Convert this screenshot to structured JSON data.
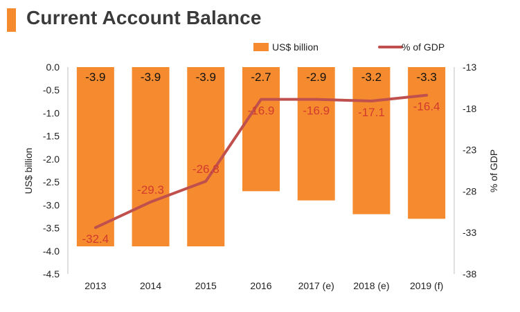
{
  "title": "Current Account Balance",
  "chart_data": {
    "type": "bar",
    "categories": [
      "2013",
      "2014",
      "2015",
      "2016",
      "2017 (e)",
      "2018 (e)",
      "2019 (f)"
    ],
    "series": [
      {
        "name": "US$ billion",
        "type": "bar",
        "axis": "left",
        "values": [
          -3.9,
          -3.9,
          -3.9,
          -2.7,
          -2.9,
          -3.2,
          -3.3
        ]
      },
      {
        "name": "% of GDP",
        "type": "line",
        "axis": "right",
        "values": [
          -32.4,
          -29.3,
          -26.8,
          -16.9,
          -16.9,
          -17.1,
          -16.4
        ]
      }
    ],
    "ylabel": "US$ billion",
    "y2label": "% of GDP",
    "ylim": [
      -4.5,
      0.0
    ],
    "y2lim": [
      -38,
      -13
    ],
    "yticks": [
      "0.0",
      "-0.5",
      "-1.0",
      "-1.5",
      "-2.0",
      "-2.5",
      "-3.0",
      "-3.5",
      "-4.0",
      "-4.5"
    ],
    "y2ticks": [
      "-13",
      "-18",
      "-23",
      "-28",
      "-33",
      "-38"
    ],
    "legend_position": "top-right",
    "grid": false,
    "colors": {
      "bar": "#f58b2e",
      "line": "#c0504d",
      "line_label": "#d23a2e"
    }
  }
}
